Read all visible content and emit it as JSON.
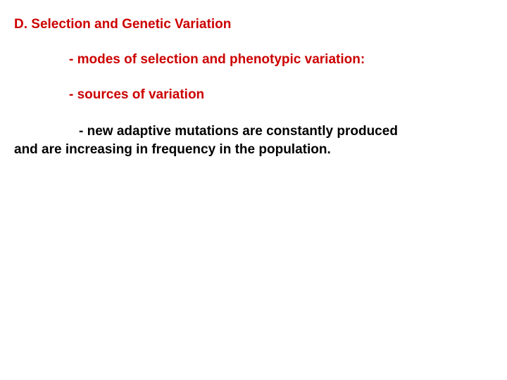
{
  "slide": {
    "heading": "D. Selection and Genetic Variation",
    "item1": "- modes of selection and phenotypic variation:",
    "item2": "- sources of variation",
    "detail_line1": "- new adaptive mutations are constantly produced",
    "detail_line2": "and are increasing in frequency in the population.",
    "colors": {
      "heading_color": "#cc0000",
      "detail_color": "#000000",
      "background": "#ffffff"
    },
    "typography": {
      "font_family": "Arial",
      "font_size_pt": 14,
      "font_weight": "bold"
    }
  }
}
